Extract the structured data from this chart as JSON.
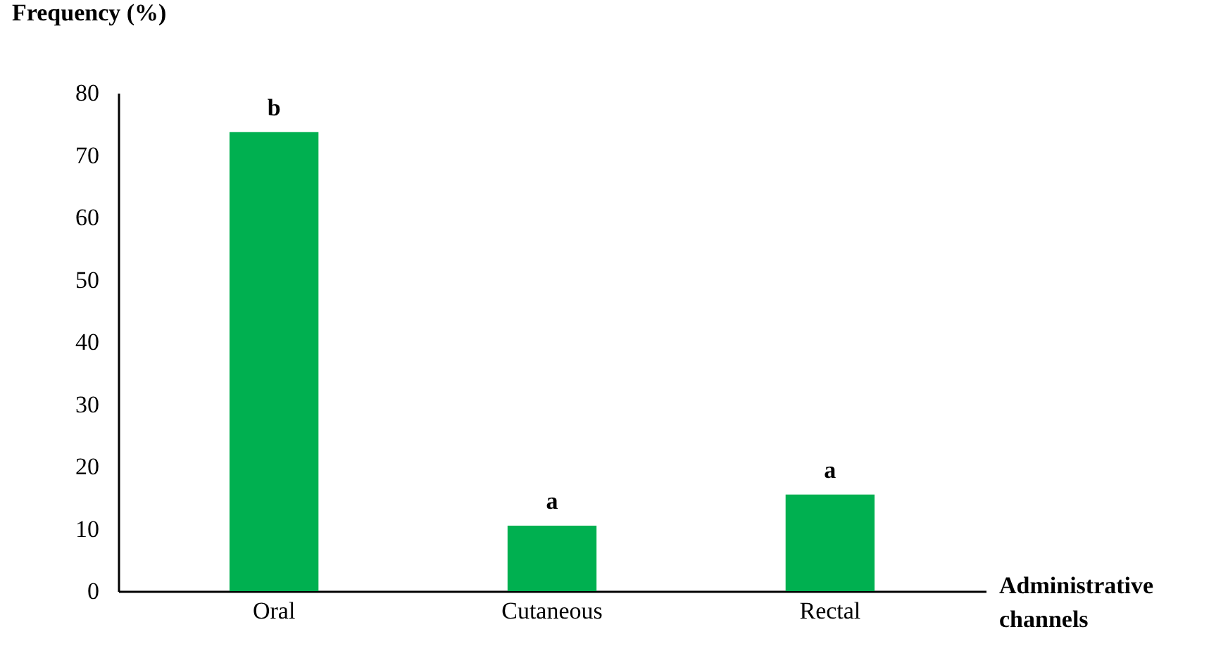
{
  "chart_data": {
    "type": "bar",
    "ylabel": "Frequency (%)",
    "xlabel": "Administrative channels",
    "categories": [
      "Oral",
      "Cutaneous",
      "Rectal"
    ],
    "values": [
      73.7,
      10.5,
      15.5
    ],
    "color": "#00b050",
    "ylim": [
      0,
      80
    ],
    "yticks": [
      0,
      10,
      20,
      30,
      40,
      50,
      60,
      70,
      80
    ],
    "grid": false,
    "annotations": [
      {
        "text": "b",
        "x": "Oral",
        "y": 73.7
      },
      {
        "text": "a",
        "x": "Cutaneous",
        "y": 10.5
      },
      {
        "text": "a",
        "x": "Rectal",
        "y": 15.5
      }
    ]
  }
}
